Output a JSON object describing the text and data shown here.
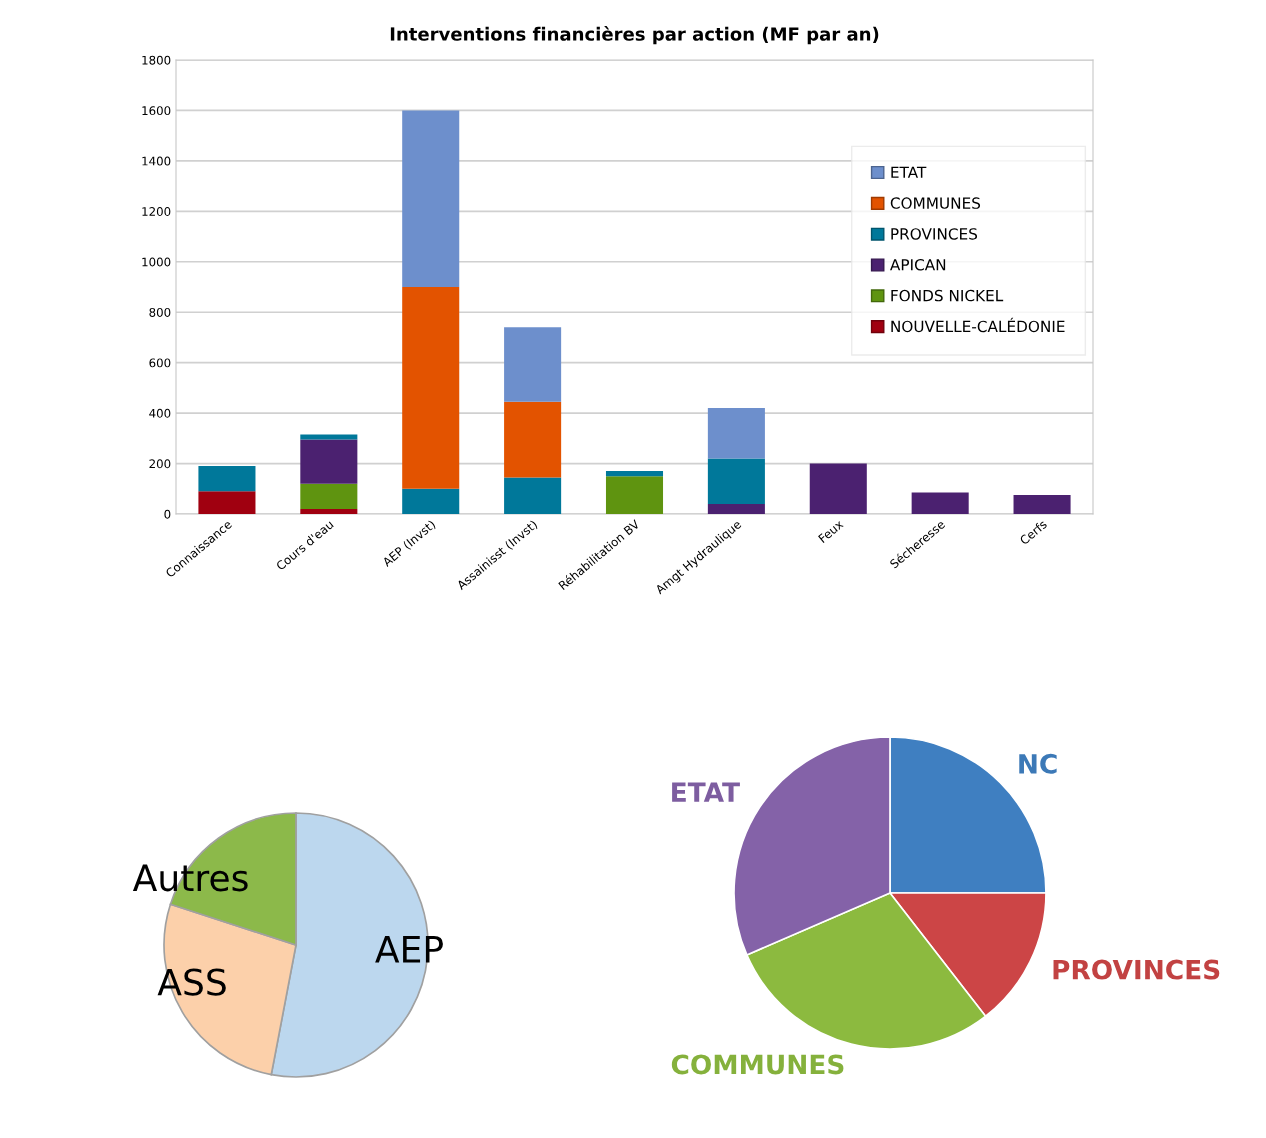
{
  "chart_data": [
    {
      "type": "bar",
      "title": "Interventions financières par action (MF par an)",
      "stacked": true,
      "categories": [
        "Connaissance",
        "Cours d'eau",
        "AEP (Invst)",
        "Assainisst (Invst)",
        "Réhabilitation BV",
        "Amgt Hydraulique",
        "Feux",
        "Sécheresse",
        "Cerfs"
      ],
      "series": [
        {
          "name": "NOUVELLE-CALÉDONIE",
          "color": "#a00010",
          "values": [
            90,
            20,
            0,
            0,
            0,
            0,
            0,
            0,
            0
          ]
        },
        {
          "name": "FONDS NICKEL",
          "color": "#5f9410",
          "values": [
            0,
            100,
            0,
            0,
            150,
            0,
            0,
            0,
            0
          ]
        },
        {
          "name": "APICAN",
          "color": "#4b2170",
          "values": [
            0,
            175,
            0,
            0,
            0,
            40,
            200,
            85,
            75
          ]
        },
        {
          "name": "PROVINCES",
          "color": "#00789a",
          "values": [
            100,
            20,
            100,
            145,
            20,
            180,
            0,
            0,
            0
          ]
        },
        {
          "name": "COMMUNES",
          "color": "#e35300",
          "values": [
            0,
            0,
            800,
            300,
            0,
            0,
            0,
            0,
            0
          ]
        },
        {
          "name": "ETAT",
          "color": "#6d8fcc",
          "values": [
            0,
            0,
            700,
            295,
            0,
            200,
            0,
            0,
            0
          ]
        }
      ],
      "ylim": [
        0,
        1800
      ],
      "yticks": [
        0,
        200,
        400,
        600,
        800,
        1000,
        1200,
        1400,
        1600,
        1800
      ],
      "grid": "y",
      "legend": "right"
    },
    {
      "type": "pie",
      "categories": [
        "AEP",
        "ASS",
        "Autres"
      ],
      "values": [
        53,
        27,
        20
      ],
      "colors": [
        "#bcd7ee",
        "#fcd0aa",
        "#8cb94a"
      ]
    },
    {
      "type": "pie",
      "categories": [
        "NC",
        "PROVINCES",
        "COMMUNES",
        "ETAT"
      ],
      "values": [
        25,
        14.5,
        29,
        31.5
      ],
      "colors": [
        "#3f7fc1",
        "#cc4546",
        "#8cba3f",
        "#8462a8"
      ]
    }
  ]
}
